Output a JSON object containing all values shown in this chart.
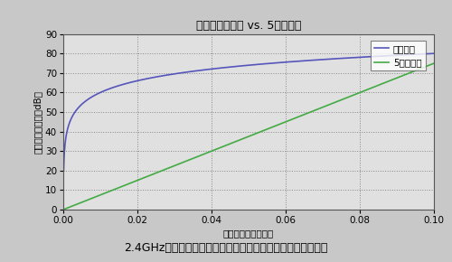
{
  "title": "传输损耗：无线 vs. 5司轴电缆",
  "xlabel": "距离（单位：千米）",
  "ylabel": "传输损耗（单位：dB）",
  "legend_wireless": "无线传输",
  "legend_coax": "5同轴电缆",
  "xlim": [
    0,
    0.1
  ],
  "ylim": [
    0,
    90
  ],
  "xticks": [
    0,
    0.02,
    0.04,
    0.06,
    0.08,
    0.1
  ],
  "yticks": [
    0,
    10,
    20,
    30,
    40,
    50,
    60,
    70,
    80,
    90
  ],
  "wireless_color": "#5555bb",
  "coax_color": "#44aa44",
  "bg_color": "#c8c8c8",
  "plot_bg_color": "#e0e0e0",
  "caption": "2.4GHz信号利用有线电视同轴电缆和无线方式传输的衰减特性",
  "title_fontsize": 9,
  "axis_fontsize": 7.5,
  "legend_fontsize": 7.5,
  "caption_fontsize": 9,
  "coax_slope_db_per_km": 750
}
